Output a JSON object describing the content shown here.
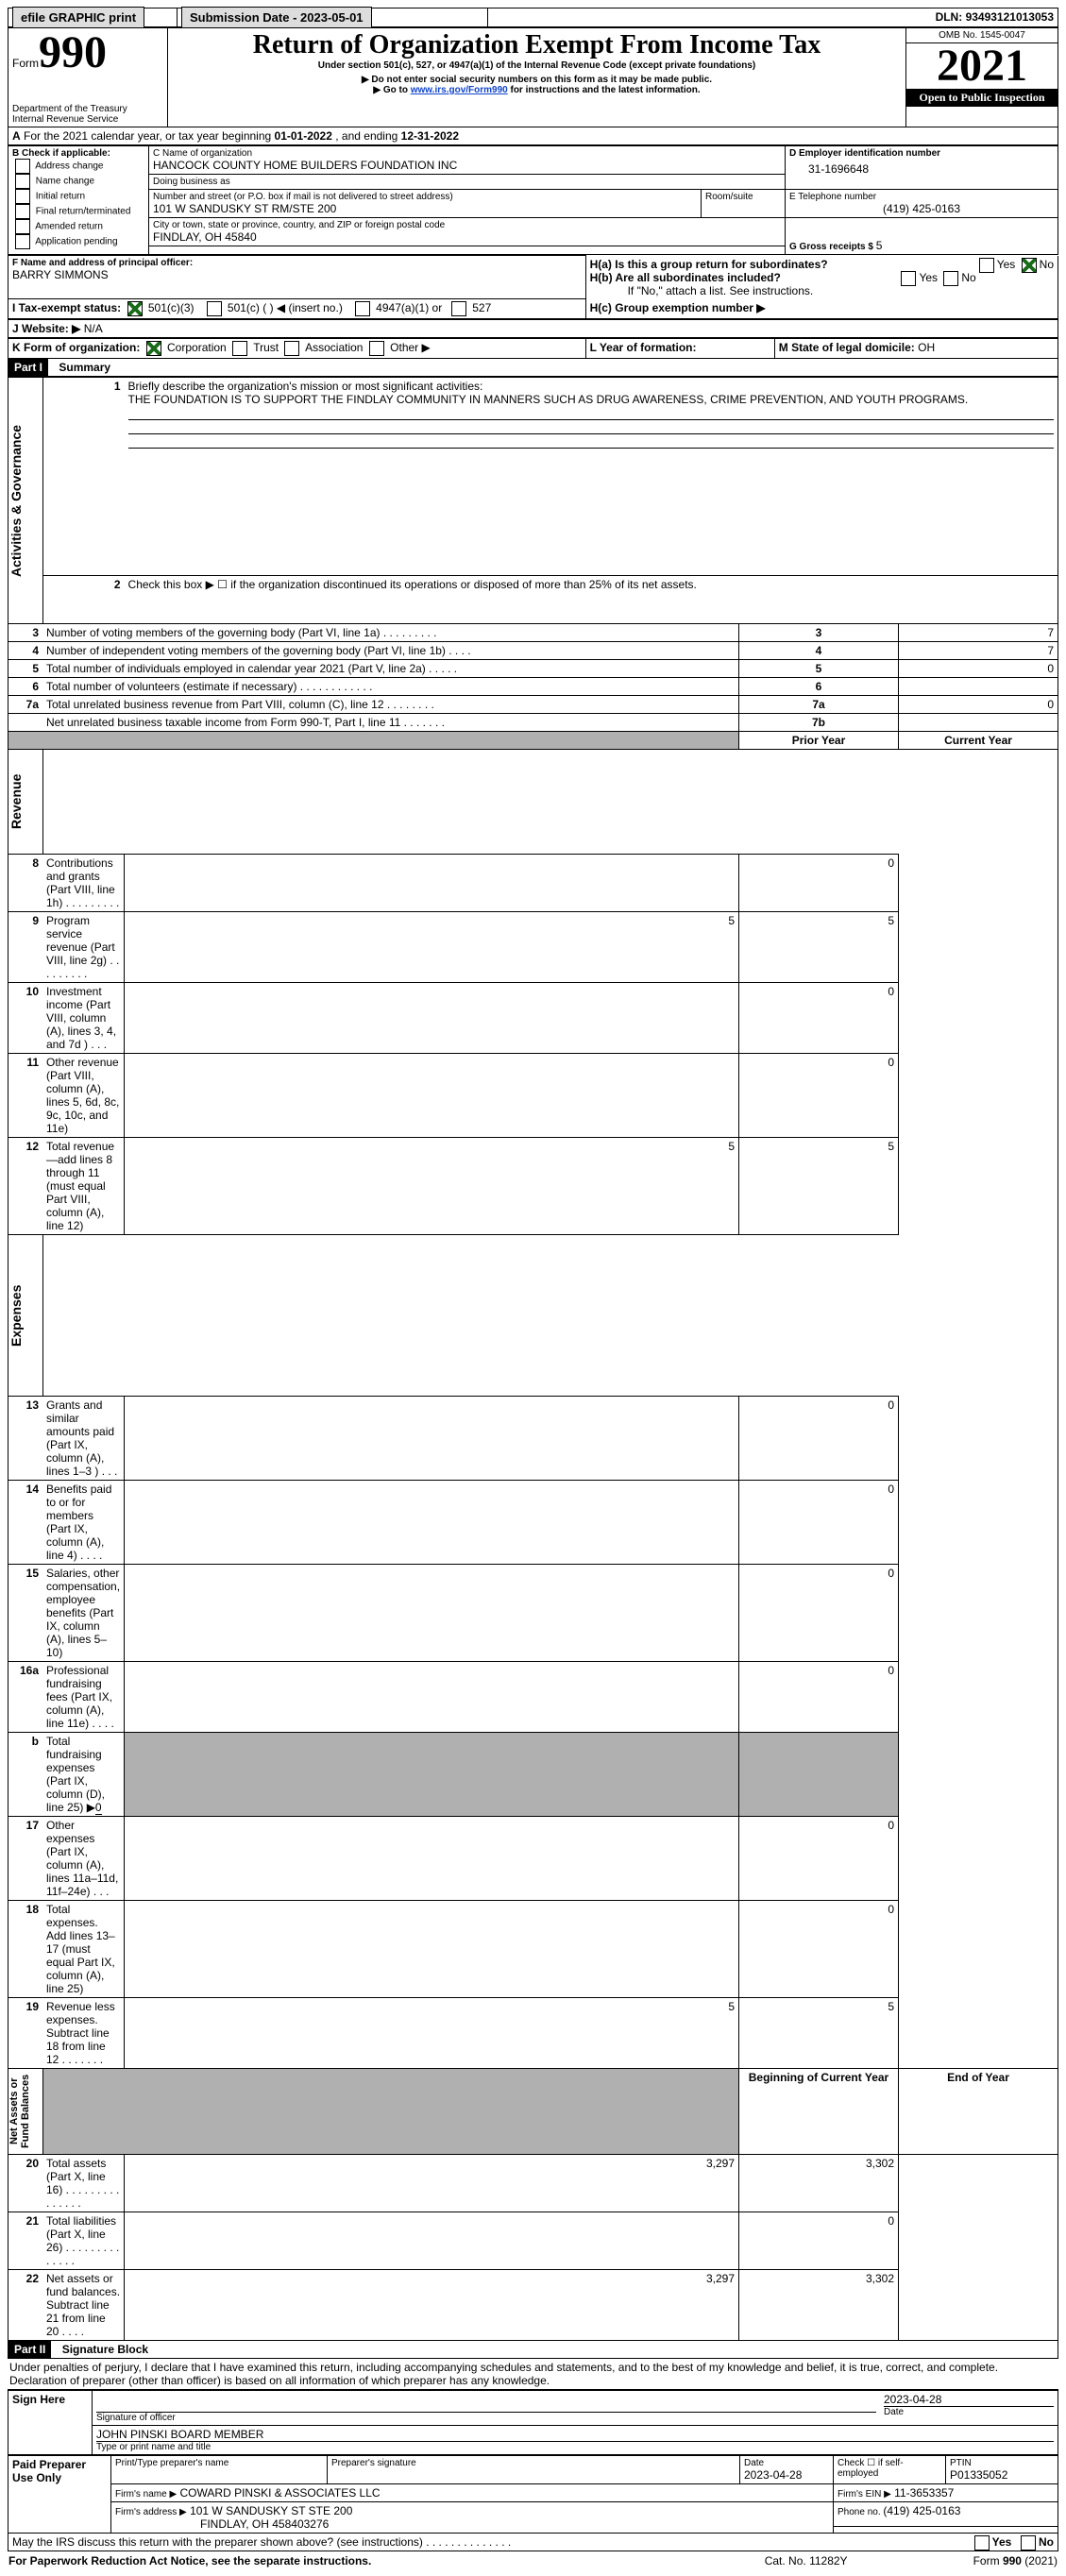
{
  "topbar": {
    "efile": "efile GRAPHIC print",
    "subdate_label": "Submission Date - ",
    "subdate": "2023-05-01",
    "dln_label": "DLN: ",
    "dln": "93493121013053"
  },
  "header": {
    "form_label": "Form",
    "form_num": "990",
    "dept": "Department of the Treasury\nInternal Revenue Service",
    "title": "Return of Organization Exempt From Income Tax",
    "subtitle": "Under section 501(c), 527, or 4947(a)(1) of the Internal Revenue Code (except private foundations)",
    "note1": "▶ Do not enter social security numbers on this form as it may be made public.",
    "note2": "▶ Go to ",
    "note2_link": "www.irs.gov/Form990",
    "note2b": " for instructions and the latest information.",
    "omb": "OMB No. 1545-0047",
    "year": "2021",
    "open": "Open to Public Inspection"
  },
  "A": {
    "line": "For the 2021 calendar year, or tax year beginning ",
    "begin": "01-01-2022",
    "mid": " , and ending ",
    "end": "12-31-2022",
    "A_bold": "A"
  },
  "B": {
    "label": "B Check if applicable:",
    "opts": [
      "Address change",
      "Name change",
      "Initial return",
      "Final return/terminated",
      "Amended return",
      "Application pending"
    ]
  },
  "C": {
    "label_name": "C Name of organization",
    "org": "HANCOCK COUNTY HOME BUILDERS FOUNDATION INC",
    "dba_label": "Doing business as",
    "dba": "",
    "addr_label": "Number and street (or P.O. box if mail is not delivered to street address)",
    "room_label": "Room/suite",
    "addr": "101 W SANDUSKY ST RM/STE 200",
    "city_label": "City or town, state or province, country, and ZIP or foreign postal code",
    "city": "FINDLAY, OH  45840"
  },
  "D": {
    "label": "D Employer identification number",
    "val": "31-1696648"
  },
  "E": {
    "label": "E Telephone number",
    "val": "(419) 425-0163"
  },
  "G": {
    "label": "G Gross receipts $ ",
    "val": "5"
  },
  "F": {
    "label": "F  Name and address of principal officer:",
    "name": "BARRY SIMMONS"
  },
  "H": {
    "a": "H(a)  Is this a group return for subordinates?",
    "a_yes": "Yes",
    "a_no": "No",
    "b": "H(b)  Are all subordinates included?",
    "b_yes": "Yes",
    "b_no": "No",
    "b_note": "If \"No,\" attach a list. See instructions.",
    "c": "H(c)  Group exemption number ▶"
  },
  "I": {
    "label": "I    Tax-exempt status:",
    "o1": "501(c)(3)",
    "o2": "501(c) (  ) ◀ (insert no.)",
    "o3": "4947(a)(1) or",
    "o4": "527"
  },
  "J": {
    "label": "J    Website: ▶",
    "val": "  N/A"
  },
  "K": {
    "label": "K Form of organization:",
    "o1": "Corporation",
    "o2": "Trust",
    "o3": "Association",
    "o4": "Other ▶"
  },
  "L": {
    "label": "L Year of formation:",
    "val": ""
  },
  "M": {
    "label": "M State of legal domicile: ",
    "val": "OH"
  },
  "part1": {
    "label": "Part I",
    "title": "Summary"
  },
  "summary": {
    "q1": "Briefly describe the organization's mission or most significant activities:",
    "mission": "THE FOUNDATION IS TO SUPPORT THE FINDLAY COMMUNITY IN MANNERS SUCH AS DRUG AWARENESS, CRIME PREVENTION, AND YOUTH PROGRAMS.",
    "q2": "Check this box ▶ ☐ if the organization discontinued its operations or disposed of more than 25% of its net assets.",
    "rows_ag": [
      {
        "n": "3",
        "t": "Number of voting members of the governing body (Part VI, line 1a)  .   .   .   .   .   .   .   .   .",
        "rn": "3",
        "v": "7"
      },
      {
        "n": "4",
        "t": "Number of independent voting members of the governing body (Part VI, line 1b)   .   .   .   .",
        "rn": "4",
        "v": "7"
      },
      {
        "n": "5",
        "t": "Total number of individuals employed in calendar year 2021 (Part V, line 2a)   .   .   .   .   .",
        "rn": "5",
        "v": "0"
      },
      {
        "n": "6",
        "t": "Total number of volunteers (estimate if necessary)    .    .    .    .    .    .    .    .    .    .    .    .",
        "rn": "6",
        "v": ""
      },
      {
        "n": "7a",
        "t": "Total unrelated business revenue from Part VIII, column (C), line 12   .   .   .   .   .   .   .   .",
        "rn": "7a",
        "v": "0"
      },
      {
        "n": "",
        "t": "Net unrelated business taxable income from Form 990-T, Part I, line 11   .   .   .   .   .   .   .",
        "rn": "7b",
        "v": ""
      }
    ],
    "col_prior": "Prior Year",
    "col_curr": "Current Year",
    "rows_rev": [
      {
        "n": "8",
        "t": "Contributions and grants (Part VIII, line 1h)   .   .   .   .   .   .   .   .   .",
        "p": "",
        "c": "0"
      },
      {
        "n": "9",
        "t": "Program service revenue (Part VIII, line 2g)   .   .   .   .   .   .   .   .   .",
        "p": "5",
        "c": "5"
      },
      {
        "n": "10",
        "t": "Investment income (Part VIII, column (A), lines 3, 4, and 7d )   .   .   .",
        "p": "",
        "c": "0"
      },
      {
        "n": "11",
        "t": "Other revenue (Part VIII, column (A), lines 5, 6d, 8c, 9c, 10c, and 11e)",
        "p": "",
        "c": "0"
      },
      {
        "n": "12",
        "t": "Total revenue—add lines 8 through 11 (must equal Part VIII, column (A), line 12)",
        "p": "5",
        "c": "5"
      }
    ],
    "rows_exp": [
      {
        "n": "13",
        "t": "Grants and similar amounts paid (Part IX, column (A), lines 1–3 )   .   .   .",
        "p": "",
        "c": "0"
      },
      {
        "n": "14",
        "t": "Benefits paid to or for members (Part IX, column (A), line 4)   .   .   .   .",
        "p": "",
        "c": "0"
      },
      {
        "n": "15",
        "t": "Salaries, other compensation, employee benefits (Part IX, column (A), lines 5–10)",
        "p": "",
        "c": "0"
      },
      {
        "n": "16a",
        "t": "Professional fundraising fees (Part IX, column (A), line 11e)   .   .   .   .",
        "p": "",
        "c": "0"
      },
      {
        "n": "b",
        "t": "Total fundraising expenses (Part IX, column (D), line 25) ▶",
        "ex": "0",
        "p": "grey",
        "c": "grey"
      },
      {
        "n": "17",
        "t": "Other expenses (Part IX, column (A), lines 11a–11d, 11f–24e)   .   .   .",
        "p": "",
        "c": "0"
      },
      {
        "n": "18",
        "t": "Total expenses. Add lines 13–17 (must equal Part IX, column (A), line 25)",
        "p": "",
        "c": "0"
      },
      {
        "n": "19",
        "t": "Revenue less expenses. Subtract line 18 from line 12  .   .   .   .   .   .   .",
        "p": "5",
        "c": "5"
      }
    ],
    "col_begin": "Beginning of Current Year",
    "col_end": "End of Year",
    "rows_net": [
      {
        "n": "20",
        "t": "Total assets (Part X, line 16)  .   .   .   .   .   .   .   .   .   .   .   .   .   .   .",
        "p": "3,297",
        "c": "3,302"
      },
      {
        "n": "21",
        "t": "Total liabilities (Part X, line 26)  .   .   .   .   .   .   .   .   .   .   .   .   .   .",
        "p": "",
        "c": "0"
      },
      {
        "n": "22",
        "t": "Net assets or fund balances. Subtract line 21 from line 20   .   .   .   .",
        "p": "3,297",
        "c": "3,302"
      }
    ],
    "side_ag": "Activities & Governance",
    "side_rev": "Revenue",
    "side_exp": "Expenses",
    "side_net": "Net Assets or Fund Balances"
  },
  "part2": {
    "label": "Part II",
    "title": "Signature Block"
  },
  "sig": {
    "decl": "Under penalties of perjury, I declare that I have examined this return, including accompanying schedules and statements, and to the best of my knowledge and belief, it is true, correct, and complete. Declaration of preparer (other than officer) is based on all information of which preparer has any knowledge.",
    "sign_here": "Sign Here",
    "sig_of": "Signature of officer",
    "date": "Date",
    "date_v": "2023-04-28",
    "typed": "JOHN PINSKI  BOARD MEMBER",
    "typed_lbl": "Type or print name and title",
    "paid": "Paid Preparer Use Only",
    "prep_name_lbl": "Print/Type preparer's name",
    "prep_sig_lbl": "Preparer's signature",
    "date2": "Date",
    "date2_v": "2023-04-28",
    "check_self": "Check ☐ if self-employed",
    "ptin_lbl": "PTIN",
    "ptin": "P01335052",
    "firm_name_lbl": "Firm's name    ▶",
    "firm_name": "COWARD PINSKI & ASSOCIATES LLC",
    "firm_ein_lbl": "Firm's EIN ▶",
    "firm_ein": "11-3653357",
    "firm_addr_lbl": "Firm's address ▶",
    "firm_addr1": "101 W SANDUSKY ST STE 200",
    "firm_addr2": "FINDLAY, OH  458403276",
    "phone_lbl": "Phone no. ",
    "phone": "(419) 425-0163",
    "may": "May the IRS discuss this return with the preparer shown above? (see instructions)   .   .   .   .   .   .   .   .   .   .   .   .   .   .",
    "yes": "Yes",
    "no": "No"
  },
  "footer": {
    "l": "For Paperwork Reduction Act Notice, see the separate instructions.",
    "c": "Cat. No. 11282Y",
    "r": "Form 990 (2021)"
  },
  "colors": {
    "black": "#000000",
    "grey": "#b0b0b0",
    "link": "#1144cc",
    "green": "#1a6b1a"
  }
}
